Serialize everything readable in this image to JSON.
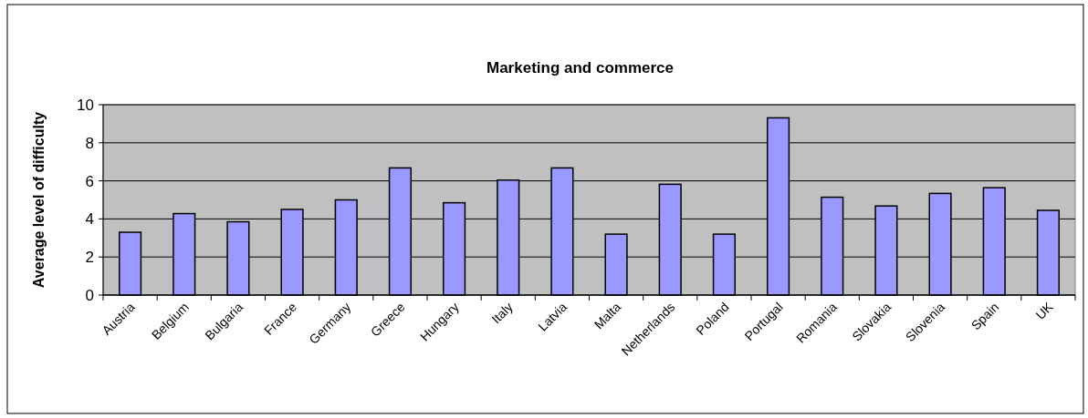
{
  "chart_data": {
    "type": "bar",
    "title": "Marketing and commerce",
    "ylabel": "Average level of difficulty",
    "categories": [
      "Austria",
      "Belgium",
      "Bulgaria",
      "France",
      "Germany",
      "Greece",
      "Hungary",
      "Italy",
      "Latvia",
      "Malta",
      "Netherlands",
      "Poland",
      "Portugal",
      "Romania",
      "Slovakia",
      "Slovenia",
      "Spain",
      "UK"
    ],
    "values": [
      3.3,
      4.28,
      3.85,
      4.5,
      5.0,
      6.68,
      4.85,
      6.04,
      6.68,
      3.2,
      5.82,
      3.2,
      9.31,
      5.14,
      4.68,
      5.34,
      5.64,
      4.45
    ],
    "color": "#9999ff",
    "ylim": [
      0,
      10
    ],
    "yticks": [
      0,
      2,
      4,
      6,
      8,
      10
    ],
    "grid": "y"
  }
}
